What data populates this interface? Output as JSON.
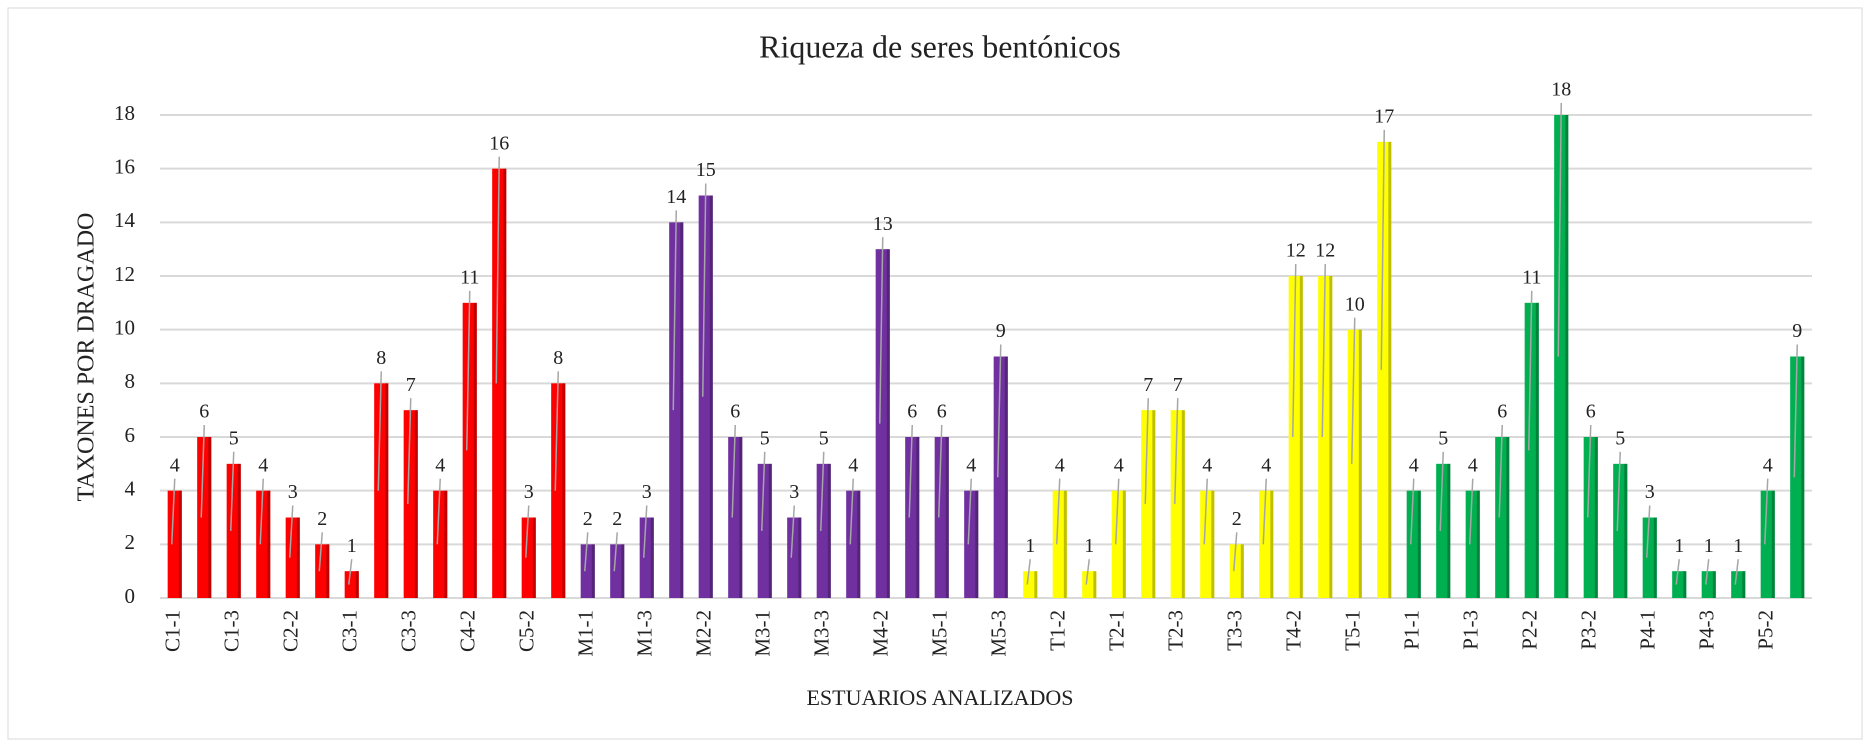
{
  "chart_data": {
    "type": "bar",
    "title": "Riqueza de seres  bentónicos",
    "x_label": "ESTUARIOS ANALIZADOS",
    "y_label": "TAXONES POR DRAGADO",
    "categories": [
      "C1-1",
      null,
      "C1-3",
      null,
      "C2-2",
      null,
      "C3-1",
      null,
      "C3-3",
      null,
      "C4-2",
      null,
      "C5-2",
      null,
      "M1-1",
      null,
      "M1-3",
      null,
      "M2-2",
      null,
      "M3-1",
      null,
      "M3-3",
      null,
      "M4-2",
      null,
      "M5-1",
      null,
      "M5-3",
      null,
      "T1-2",
      null,
      "T2-1",
      null,
      "T2-3",
      null,
      "T3-3",
      null,
      "T4-2",
      null,
      "T5-1",
      null,
      "P1-1",
      null,
      "P1-3",
      null,
      "P2-2",
      null,
      "P3-2",
      null,
      "P4-1",
      null,
      "P4-3",
      null,
      "P5-2",
      null
    ],
    "values": [
      4,
      6,
      5,
      4,
      3,
      2,
      1,
      8,
      7,
      4,
      11,
      16,
      3,
      8,
      2,
      2,
      3,
      14,
      15,
      6,
      5,
      3,
      5,
      4,
      13,
      6,
      6,
      4,
      9,
      1,
      4,
      1,
      4,
      7,
      7,
      4,
      2,
      4,
      12,
      12,
      10,
      17,
      4,
      5,
      4,
      6,
      11,
      18,
      6,
      5,
      3,
      1,
      1,
      1,
      4,
      9
    ],
    "colors": [
      "#ff0000",
      "#ff0000",
      "#ff0000",
      "#ff0000",
      "#ff0000",
      "#ff0000",
      "#ff0000",
      "#ff0000",
      "#ff0000",
      "#ff0000",
      "#ff0000",
      "#ff0000",
      "#ff0000",
      "#ff0000",
      "#7030a0",
      "#7030a0",
      "#7030a0",
      "#7030a0",
      "#7030a0",
      "#7030a0",
      "#7030a0",
      "#7030a0",
      "#7030a0",
      "#7030a0",
      "#7030a0",
      "#7030a0",
      "#7030a0",
      "#7030a0",
      "#7030a0",
      "#ffff00",
      "#ffff00",
      "#ffff00",
      "#ffff00",
      "#ffff00",
      "#ffff00",
      "#ffff00",
      "#ffff00",
      "#ffff00",
      "#ffff00",
      "#ffff00",
      "#ffff00",
      "#ffff00",
      "#00b050",
      "#00b050",
      "#00b050",
      "#00b050",
      "#00b050",
      "#00b050",
      "#00b050",
      "#00b050",
      "#00b050",
      "#00b050",
      "#00b050",
      "#00b050",
      "#00b050",
      "#00b050"
    ],
    "ylim": [
      0,
      18
    ],
    "yticks": [
      0,
      2,
      4,
      6,
      8,
      10,
      12,
      14,
      16,
      18
    ],
    "grid": true
  }
}
